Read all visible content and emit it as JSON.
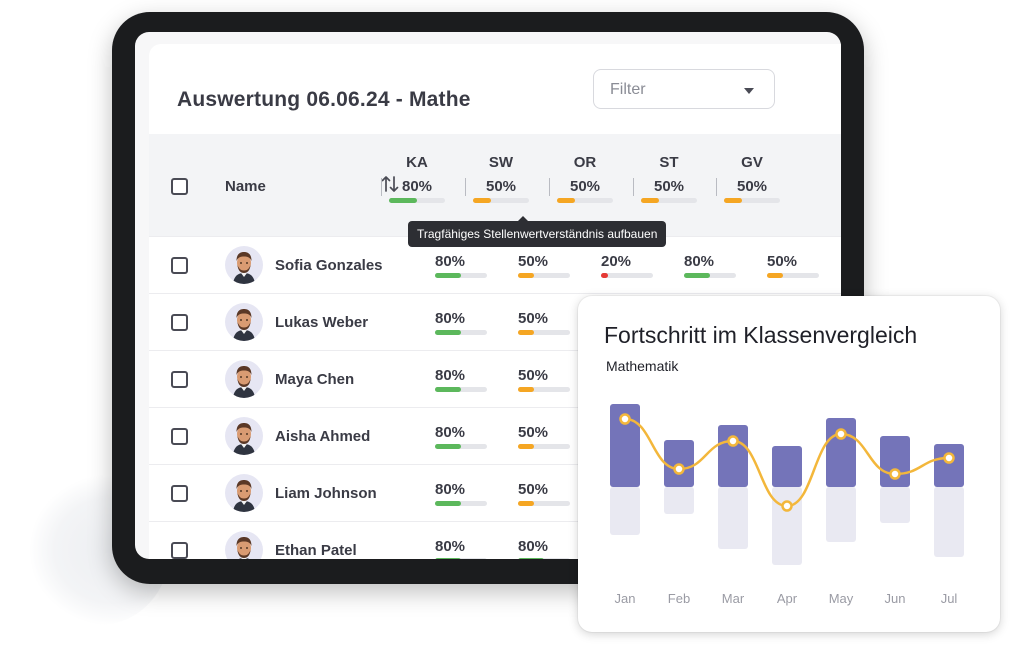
{
  "header": {
    "title": "Auswertung 06.06.24 - Mathe",
    "filter_placeholder": "Filter"
  },
  "table": {
    "name_header": "Name",
    "columns": [
      {
        "code": "KA",
        "pct_label": "80%",
        "pct": 80,
        "color": "#5cb85c"
      },
      {
        "code": "SW",
        "pct_label": "50%",
        "pct": 50,
        "color": "#f5a623"
      },
      {
        "code": "OR",
        "pct_label": "50%",
        "pct": 50,
        "color": "#f5a623"
      },
      {
        "code": "ST",
        "pct_label": "50%",
        "pct": 50,
        "color": "#f5a623"
      },
      {
        "code": "GV",
        "pct_label": "50%",
        "pct": 50,
        "color": "#f5a623"
      }
    ],
    "tooltip": "Tragfähiges Stellenwertverständnis aufbauen",
    "rows": [
      {
        "name": "Sofia Gonzales",
        "scores": [
          {
            "label": "80%",
            "pct": 80,
            "color": "#5cb85c"
          },
          {
            "label": "50%",
            "pct": 50,
            "color": "#f5a623"
          },
          {
            "label": "20%",
            "pct": 20,
            "color": "#e53935"
          },
          {
            "label": "80%",
            "pct": 80,
            "color": "#5cb85c"
          },
          {
            "label": "50%",
            "pct": 50,
            "color": "#f5a623"
          }
        ]
      },
      {
        "name": "Lukas Weber",
        "scores": [
          {
            "label": "80%",
            "pct": 80,
            "color": "#5cb85c"
          },
          {
            "label": "50%",
            "pct": 50,
            "color": "#f5a623"
          }
        ]
      },
      {
        "name": "Maya Chen",
        "scores": [
          {
            "label": "80%",
            "pct": 80,
            "color": "#5cb85c"
          },
          {
            "label": "50%",
            "pct": 50,
            "color": "#f5a623"
          }
        ]
      },
      {
        "name": "Aisha Ahmed",
        "scores": [
          {
            "label": "80%",
            "pct": 80,
            "color": "#5cb85c"
          },
          {
            "label": "50%",
            "pct": 50,
            "color": "#f5a623"
          }
        ]
      },
      {
        "name": "Liam Johnson",
        "scores": [
          {
            "label": "80%",
            "pct": 80,
            "color": "#5cb85c"
          },
          {
            "label": "50%",
            "pct": 50,
            "color": "#f5a623"
          }
        ]
      },
      {
        "name": "Ethan Patel",
        "scores": [
          {
            "label": "80%",
            "pct": 80,
            "color": "#5cb85c"
          },
          {
            "label": "80%",
            "pct": 80,
            "color": "#5cb85c"
          }
        ]
      }
    ]
  },
  "card": {
    "title": "Fortschritt im Klassenvergleich",
    "subtitle": "Mathematik"
  },
  "chart_data": {
    "type": "bar",
    "categories": [
      "Jan",
      "Feb",
      "Mar",
      "Apr",
      "May",
      "Jun",
      "Jul"
    ],
    "series": [
      {
        "type": "bar",
        "values": [
          8.3,
          4.7,
          6.2,
          4.1,
          6.9,
          5.1,
          4.3
        ],
        "color": "#7474b9"
      },
      {
        "type": "bar",
        "values": [
          -4.8,
          -2.7,
          -6.2,
          -7.8,
          -5.5,
          -3.6,
          -7.0
        ],
        "color": "#e9e9f2"
      },
      {
        "type": "line",
        "values": [
          6.8,
          1.8,
          4.6,
          -1.9,
          5.3,
          1.3,
          2.9
        ],
        "color": "#f3b73b"
      }
    ],
    "ylim": [
      -8.5,
      9
    ],
    "grid": false,
    "legend": "none"
  },
  "icons": {
    "sort": "sort-arrows-icon",
    "dropdown": "chevron-down-icon",
    "avatar": "avatar-icon"
  }
}
